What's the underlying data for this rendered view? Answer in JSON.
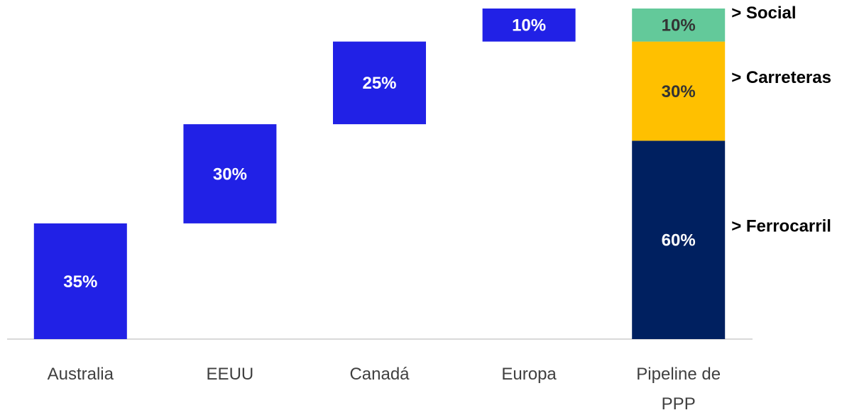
{
  "chart_data": {
    "type": "waterfall",
    "categories": [
      "Australia",
      "EEUU",
      "Canadá",
      "Europa",
      "Pipeline de PPP"
    ],
    "values": [
      35,
      30,
      25,
      10,
      null
    ],
    "value_labels": [
      "35%",
      "30%",
      "25%",
      "10%",
      null
    ],
    "color": "#2121e6",
    "series": [
      {
        "name": "> Ferrocarril",
        "color": "#002060",
        "values": [
          null,
          null,
          null,
          null,
          60
        ],
        "value_labels": [
          null,
          null,
          null,
          null,
          "60%"
        ]
      },
      {
        "name": "> Carreteras",
        "color": "#ffc000",
        "values": [
          null,
          null,
          null,
          null,
          30
        ],
        "value_labels": [
          null,
          null,
          null,
          null,
          "30%"
        ]
      },
      {
        "name": "> Social",
        "color": "#63c99a",
        "values": [
          null,
          null,
          null,
          null,
          10
        ],
        "value_labels": [
          null,
          null,
          null,
          null,
          "10%"
        ]
      }
    ]
  }
}
